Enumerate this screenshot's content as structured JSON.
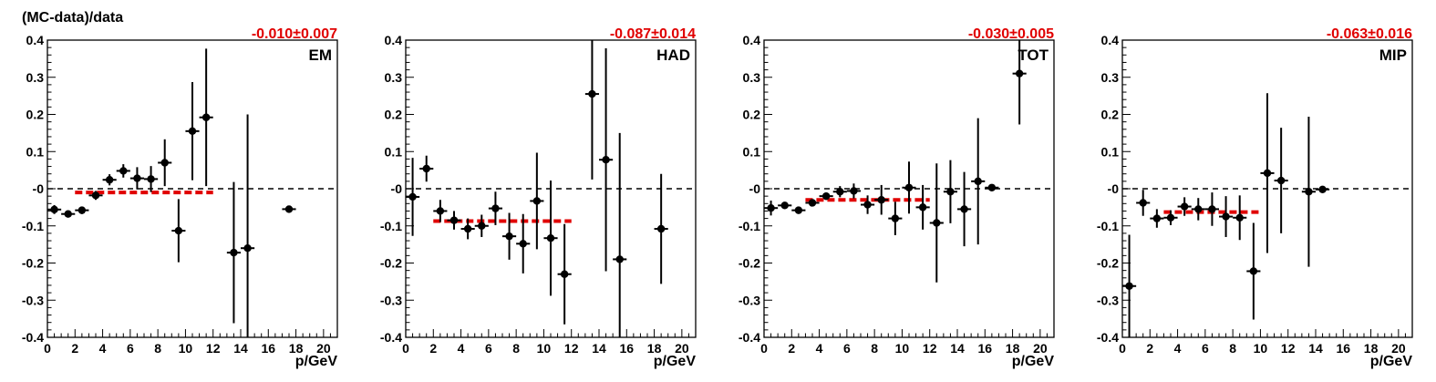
{
  "figure": {
    "ylabel": "(MC-data)/data"
  },
  "chart_data": [
    {
      "type": "scatter",
      "panel_label": "EM",
      "fit_label": "-0.010±0.007",
      "xlabel": "p/GeV",
      "xlim": [
        0,
        21
      ],
      "ylim": [
        -0.4,
        0.4
      ],
      "x_ticks": [
        0,
        2,
        4,
        6,
        8,
        10,
        12,
        14,
        16,
        18,
        20
      ],
      "x_tick_labels": [
        "0",
        "2",
        "4",
        "6",
        "8",
        "10",
        "12",
        "14",
        "16",
        "18",
        "20"
      ],
      "y_ticks": [
        -0.4,
        -0.3,
        -0.2,
        -0.1,
        0,
        0.1,
        0.2,
        0.3,
        0.4
      ],
      "y_tick_labels": [
        "-0.4",
        "-0.3",
        "-0.2",
        "-0.1",
        "-0",
        "0.1",
        "0.2",
        "0.3",
        "0.4"
      ],
      "fit": {
        "value": -0.01,
        "x_range": [
          2,
          12
        ],
        "color": "#e00000"
      },
      "reference_line": 0,
      "points": [
        {
          "x": 0.5,
          "y": -0.056,
          "err": 0.012
        },
        {
          "x": 1.5,
          "y": -0.068,
          "err": 0.008
        },
        {
          "x": 2.5,
          "y": -0.058,
          "err": 0.01
        },
        {
          "x": 3.5,
          "y": -0.018,
          "err": 0.012
        },
        {
          "x": 4.5,
          "y": 0.024,
          "err": 0.015
        },
        {
          "x": 5.5,
          "y": 0.048,
          "err": 0.018
        },
        {
          "x": 6.5,
          "y": 0.028,
          "err": 0.03
        },
        {
          "x": 7.5,
          "y": 0.026,
          "err": 0.035
        },
        {
          "x": 8.5,
          "y": 0.07,
          "err": 0.063
        },
        {
          "x": 9.5,
          "y": -0.113,
          "err": 0.085
        },
        {
          "x": 10.5,
          "y": 0.155,
          "err": 0.132
        },
        {
          "x": 11.5,
          "y": 0.192,
          "err": 0.185
        },
        {
          "x": 13.5,
          "y": -0.172,
          "err": 0.19
        },
        {
          "x": 14.5,
          "y": -0.16,
          "err": 0.36
        },
        {
          "x": 17.5,
          "y": -0.055,
          "err": 0.008
        }
      ]
    },
    {
      "type": "scatter",
      "panel_label": "HAD",
      "fit_label": "-0.087±0.014",
      "xlabel": "p/GeV",
      "xlim": [
        0,
        21
      ],
      "ylim": [
        -0.4,
        0.4
      ],
      "x_ticks": [
        0,
        2,
        4,
        6,
        8,
        10,
        12,
        14,
        16,
        18,
        20
      ],
      "x_tick_labels": [
        "0",
        "2",
        "4",
        "6",
        "8",
        "10",
        "12",
        "14",
        "16",
        "18",
        "20"
      ],
      "y_ticks": [
        -0.4,
        -0.3,
        -0.2,
        -0.1,
        0,
        0.1,
        0.2,
        0.3,
        0.4
      ],
      "y_tick_labels": [
        "-0.4",
        "-0.3",
        "-0.2",
        "-0.1",
        "-0",
        "0.1",
        "0.2",
        "0.3",
        "0.4"
      ],
      "fit": {
        "value": -0.087,
        "x_range": [
          2,
          12
        ],
        "color": "#e00000"
      },
      "reference_line": 0,
      "points": [
        {
          "x": 0.5,
          "y": -0.022,
          "err": 0.105
        },
        {
          "x": 1.5,
          "y": 0.054,
          "err": 0.035
        },
        {
          "x": 2.5,
          "y": -0.06,
          "err": 0.03
        },
        {
          "x": 3.5,
          "y": -0.085,
          "err": 0.025
        },
        {
          "x": 4.5,
          "y": -0.108,
          "err": 0.028
        },
        {
          "x": 5.5,
          "y": -0.1,
          "err": 0.03
        },
        {
          "x": 6.5,
          "y": -0.053,
          "err": 0.045
        },
        {
          "x": 7.5,
          "y": -0.128,
          "err": 0.063
        },
        {
          "x": 8.5,
          "y": -0.148,
          "err": 0.08
        },
        {
          "x": 9.5,
          "y": -0.033,
          "err": 0.13
        },
        {
          "x": 10.5,
          "y": -0.133,
          "err": 0.155
        },
        {
          "x": 11.5,
          "y": -0.23,
          "err": 0.135
        },
        {
          "x": 13.5,
          "y": 0.255,
          "err": 0.23
        },
        {
          "x": 14.5,
          "y": 0.078,
          "err": 0.3
        },
        {
          "x": 15.5,
          "y": -0.19,
          "err": 0.34
        },
        {
          "x": 18.5,
          "y": -0.108,
          "err": 0.148
        }
      ]
    },
    {
      "type": "scatter",
      "panel_label": "TOT",
      "fit_label": "-0.030±0.005",
      "xlabel": "p/GeV",
      "xlim": [
        0,
        21
      ],
      "ylim": [
        -0.4,
        0.4
      ],
      "x_ticks": [
        0,
        2,
        4,
        6,
        8,
        10,
        12,
        14,
        16,
        18,
        20
      ],
      "x_tick_labels": [
        "0",
        "2",
        "4",
        "6",
        "8",
        "10",
        "12",
        "14",
        "16",
        "18",
        "20"
      ],
      "y_ticks": [
        -0.4,
        -0.3,
        -0.2,
        -0.1,
        0,
        0.1,
        0.2,
        0.3,
        0.4
      ],
      "y_tick_labels": [
        "-0.4",
        "-0.3",
        "-0.2",
        "-0.1",
        "-0",
        "0.1",
        "0.2",
        "0.3",
        "0.4"
      ],
      "fit": {
        "value": -0.03,
        "x_range": [
          3,
          12
        ],
        "color": "#e00000"
      },
      "reference_line": 0,
      "points": [
        {
          "x": 0.5,
          "y": -0.052,
          "err": 0.02
        },
        {
          "x": 1.5,
          "y": -0.045,
          "err": 0.008
        },
        {
          "x": 2.5,
          "y": -0.058,
          "err": 0.008
        },
        {
          "x": 3.5,
          "y": -0.038,
          "err": 0.008
        },
        {
          "x": 4.5,
          "y": -0.02,
          "err": 0.01
        },
        {
          "x": 5.5,
          "y": -0.008,
          "err": 0.015
        },
        {
          "x": 6.5,
          "y": -0.006,
          "err": 0.02
        },
        {
          "x": 7.5,
          "y": -0.043,
          "err": 0.025
        },
        {
          "x": 8.5,
          "y": -0.03,
          "err": 0.04
        },
        {
          "x": 9.5,
          "y": -0.08,
          "err": 0.045
        },
        {
          "x": 10.5,
          "y": 0.003,
          "err": 0.07
        },
        {
          "x": 11.5,
          "y": -0.05,
          "err": 0.06
        },
        {
          "x": 12.5,
          "y": -0.092,
          "err": 0.16
        },
        {
          "x": 13.5,
          "y": -0.008,
          "err": 0.085
        },
        {
          "x": 14.5,
          "y": -0.055,
          "err": 0.1
        },
        {
          "x": 15.5,
          "y": 0.02,
          "err": 0.17
        },
        {
          "x": 16.5,
          "y": 0.003,
          "err": 0.005
        },
        {
          "x": 18.5,
          "y": 0.31,
          "err": 0.137
        }
      ]
    },
    {
      "type": "scatter",
      "panel_label": "MIP",
      "fit_label": "-0.063±0.016",
      "xlabel": "p/GeV",
      "xlim": [
        0,
        21
      ],
      "ylim": [
        -0.4,
        0.4
      ],
      "x_ticks": [
        0,
        2,
        4,
        6,
        8,
        10,
        12,
        14,
        16,
        18,
        20
      ],
      "x_tick_labels": [
        "0",
        "2",
        "4",
        "6",
        "8",
        "10",
        "12",
        "14",
        "16",
        "18",
        "20"
      ],
      "y_ticks": [
        -0.4,
        -0.3,
        -0.2,
        -0.1,
        0,
        0.1,
        0.2,
        0.3,
        0.4
      ],
      "y_tick_labels": [
        "-0.4",
        "-0.3",
        "-0.2",
        "-0.1",
        "-0",
        "0.1",
        "0.2",
        "0.3",
        "0.4"
      ],
      "fit": {
        "value": -0.063,
        "x_range": [
          3,
          10
        ],
        "color": "#e00000"
      },
      "reference_line": 0,
      "points": [
        {
          "x": 0.5,
          "y": -0.262,
          "err": 0.138
        },
        {
          "x": 1.5,
          "y": -0.038,
          "err": 0.035
        },
        {
          "x": 2.5,
          "y": -0.08,
          "err": 0.025
        },
        {
          "x": 3.5,
          "y": -0.078,
          "err": 0.02
        },
        {
          "x": 4.5,
          "y": -0.048,
          "err": 0.025
        },
        {
          "x": 5.5,
          "y": -0.055,
          "err": 0.03
        },
        {
          "x": 6.5,
          "y": -0.055,
          "err": 0.045
        },
        {
          "x": 7.5,
          "y": -0.075,
          "err": 0.055
        },
        {
          "x": 8.5,
          "y": -0.078,
          "err": 0.06
        },
        {
          "x": 9.5,
          "y": -0.222,
          "err": 0.13
        },
        {
          "x": 10.5,
          "y": 0.042,
          "err": 0.215
        },
        {
          "x": 11.5,
          "y": 0.022,
          "err": 0.142
        },
        {
          "x": 13.5,
          "y": -0.008,
          "err": 0.202
        },
        {
          "x": 14.5,
          "y": -0.002,
          "err": 0.008
        }
      ]
    }
  ]
}
